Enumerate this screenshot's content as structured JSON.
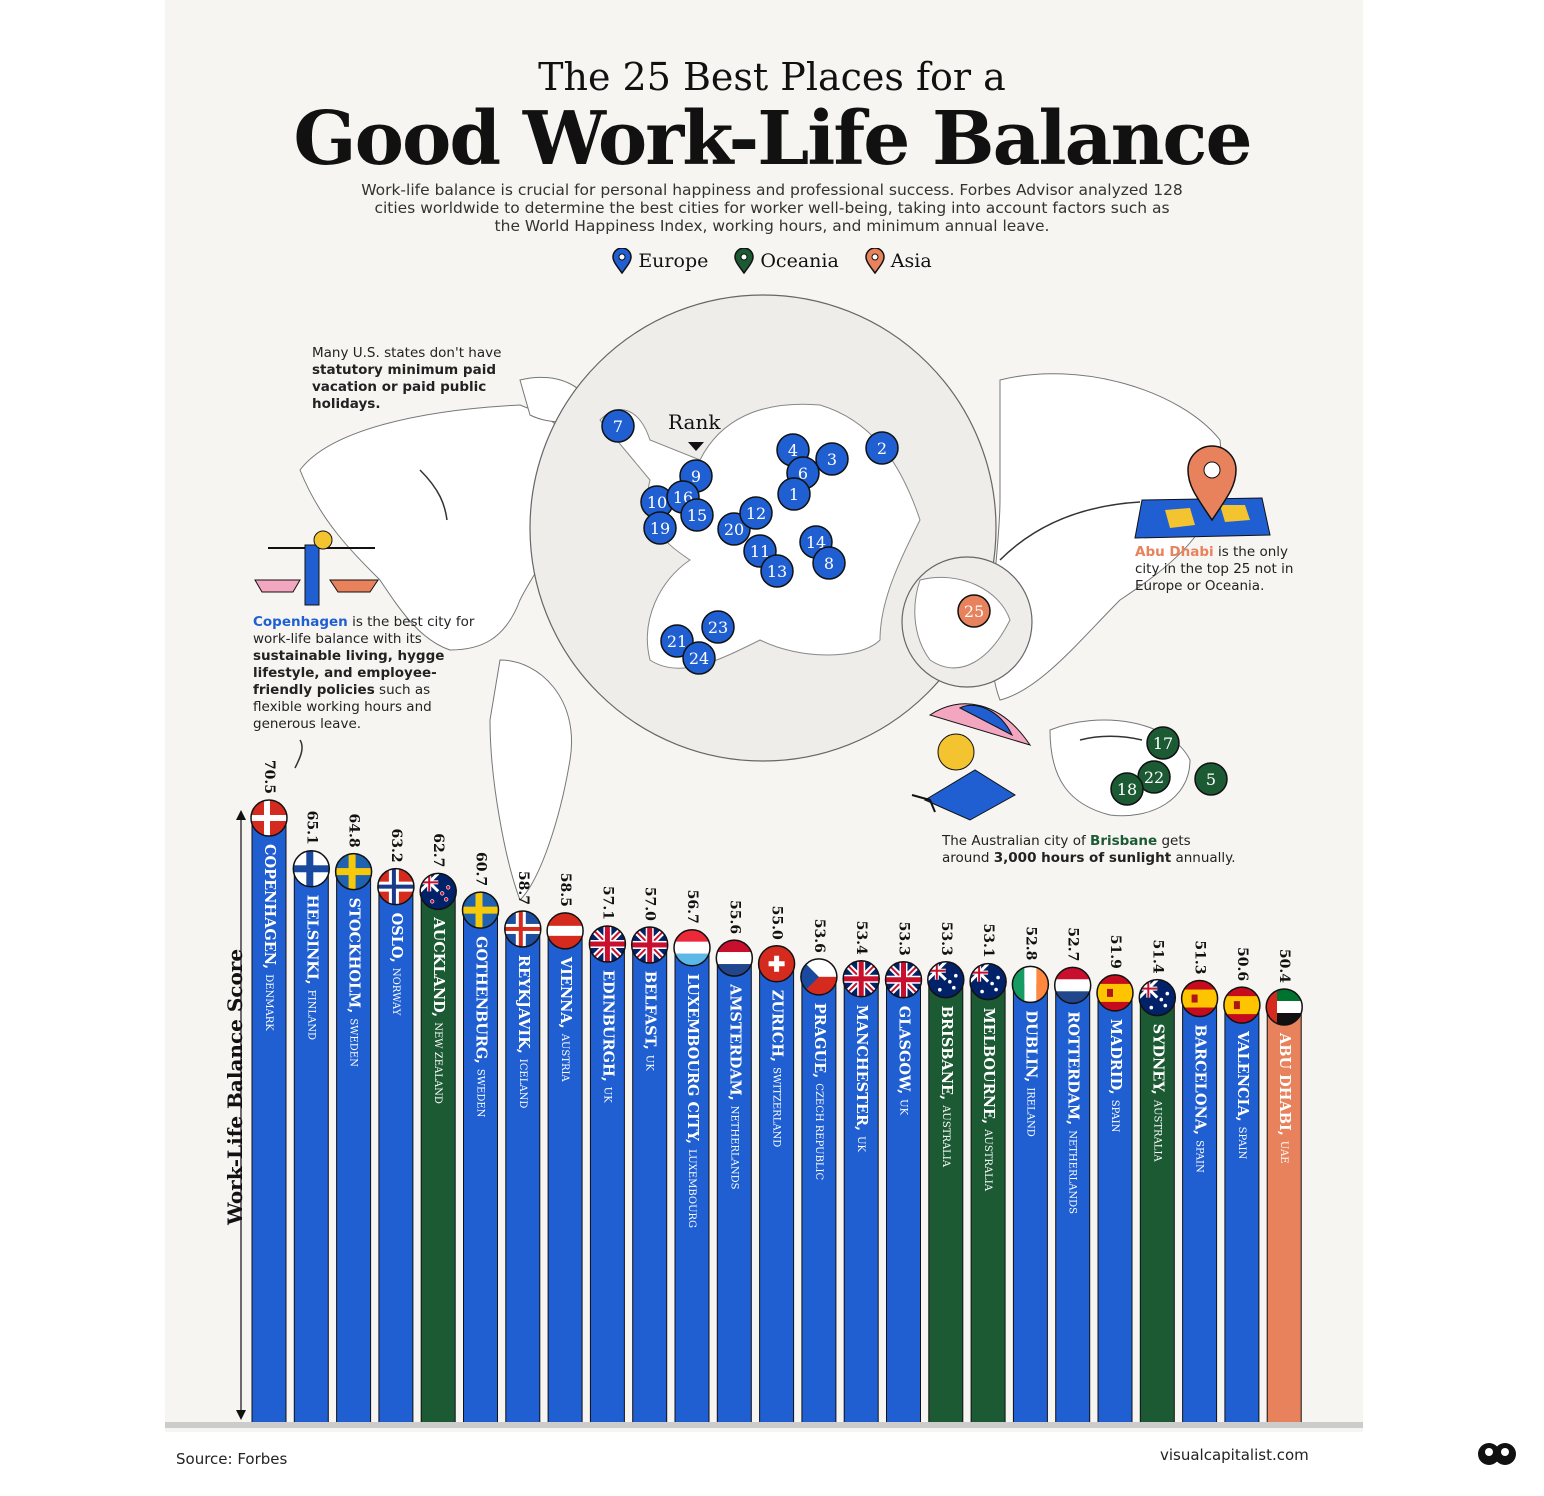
{
  "header": {
    "title_line1": "The 25 Best Places for a",
    "title_line2": "Good Work-Life Balance",
    "subtitle": "Work-life balance is crucial for personal happiness and professional success. Forbes Advisor analyzed 128 cities worldwide to determine the best cities for worker well-being, taking into account factors such as the World Happiness Index, working hours, and minimum annual leave."
  },
  "legend": [
    {
      "label": "Europe",
      "color": "#1f5fd1"
    },
    {
      "label": "Oceania",
      "color": "#1c5a34"
    },
    {
      "label": "Asia",
      "color": "#e8825c"
    }
  ],
  "map": {
    "rank_label": "Rank",
    "markers": [
      "7",
      "4",
      "3",
      "2",
      "6",
      "1",
      "9",
      "10",
      "16",
      "15",
      "19",
      "20",
      "12",
      "14",
      "11",
      "8",
      "13",
      "23",
      "21",
      "24",
      "25",
      "17",
      "22",
      "18",
      "5"
    ]
  },
  "notes": {
    "us_text": "Many U.S. states don't have",
    "us_bold": "statutory minimum paid vacation or paid public holidays.",
    "copenhagen_city": "Copenhagen",
    "copenhagen_text1": "is the best city for work-life balance with its",
    "copenhagen_bold": "sustainable living, hygge lifestyle, and employee-friendly policies",
    "copenhagen_text2": "such as flexible working hours and generous leave.",
    "abudhabi_city": "Abu Dhabi",
    "abudhabi_text": "is the only city in the top 25 not in Europe or Oceania.",
    "brisbane_text1": "The Australian city of",
    "brisbane_city": "Brisbane",
    "brisbane_text2": "gets around",
    "brisbane_bold": "3,000 hours of sunlight",
    "brisbane_text3": "annually."
  },
  "chart_data": {
    "type": "bar",
    "title": "Good Work-Life Balance",
    "ylabel": "Work-Life Balance Score",
    "ylim": [
      0,
      70.5
    ],
    "categories": [
      "COPENHAGEN",
      "HELSINKI",
      "STOCKHOLM",
      "OSLO",
      "AUCKLAND",
      "GOTHENBURG",
      "REYKJAVIK",
      "VIENNA",
      "EDINBURGH",
      "BELFAST",
      "LUXEMBOURG CITY",
      "AMSTERDAM",
      "ZURICH",
      "PRAGUE",
      "MANCHESTER",
      "GLASGOW",
      "BRISBANE",
      "MELBOURNE",
      "DUBLIN",
      "ROTTERDAM",
      "MADRID",
      "SYDNEY",
      "BARCELONA",
      "VALENCIA",
      "ABU DHABI"
    ],
    "countries": [
      "DENMARK",
      "FINLAND",
      "SWEDEN",
      "NORWAY",
      "NEW ZEALAND",
      "SWEDEN",
      "ICELAND",
      "AUSTRIA",
      "UK",
      "UK",
      "LUXEMBOURG",
      "NETHERLANDS",
      "SWITZERLAND",
      "CZECH REPUBLIC",
      "UK",
      "UK",
      "AUSTRALIA",
      "AUSTRALIA",
      "IRELAND",
      "NETHERLANDS",
      "SPAIN",
      "AUSTRALIA",
      "SPAIN",
      "SPAIN",
      "UAE"
    ],
    "values": [
      70.5,
      65.1,
      64.8,
      63.2,
      62.7,
      60.7,
      58.7,
      58.5,
      57.1,
      57.0,
      56.7,
      55.6,
      55.0,
      53.6,
      53.4,
      53.3,
      53.3,
      53.1,
      52.8,
      52.7,
      51.9,
      51.4,
      51.3,
      50.6,
      50.4
    ],
    "value_labels": [
      "70.5",
      "65.1",
      "64.8",
      "63.2",
      "62.7",
      "60.7",
      "58.7",
      "58.5",
      "57.1",
      "57.0",
      "56.7",
      "55.6",
      "55.0",
      "53.6",
      "53.4",
      "53.3",
      "53.3",
      "53.1",
      "52.8",
      "52.7",
      "51.9",
      "51.4",
      "51.3",
      "50.6",
      "50.4"
    ],
    "regions": [
      "Europe",
      "Europe",
      "Europe",
      "Europe",
      "Oceania",
      "Europe",
      "Europe",
      "Europe",
      "Europe",
      "Europe",
      "Europe",
      "Europe",
      "Europe",
      "Europe",
      "Europe",
      "Europe",
      "Oceania",
      "Oceania",
      "Europe",
      "Europe",
      "Europe",
      "Oceania",
      "Europe",
      "Europe",
      "Asia"
    ],
    "flags": [
      "denmark",
      "finland",
      "sweden",
      "norway",
      "new-zealand",
      "sweden",
      "iceland",
      "austria",
      "uk",
      "uk",
      "luxembourg",
      "netherlands",
      "switzerland",
      "czech-republic",
      "uk",
      "uk",
      "australia",
      "australia",
      "ireland",
      "netherlands",
      "spain",
      "australia",
      "spain",
      "spain",
      "uae"
    ]
  },
  "footer": {
    "source": "Source: Forbes",
    "brand": "visualcapitalist.com"
  }
}
